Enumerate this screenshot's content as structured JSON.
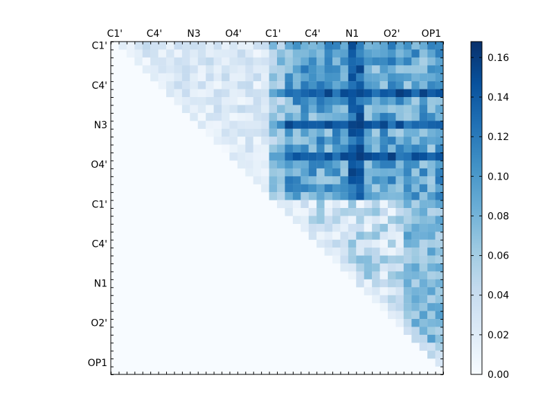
{
  "chart_data": {
    "type": "heatmap",
    "title": "",
    "xlabel": "",
    "ylabel": "",
    "x_tick_labels": [
      "C1'",
      "C4'",
      "N3",
      "O4'",
      "C1'",
      "C4'",
      "N1",
      "O2'",
      "OP1"
    ],
    "y_tick_labels": [
      "C1'",
      "C4'",
      "N3",
      "O4'",
      "C1'",
      "C4'",
      "N1",
      "O2'",
      "OP1"
    ],
    "grid_size": 42,
    "tick_step": 5,
    "colormap": "Blues",
    "colorbar": {
      "min": 0.0,
      "max": 0.168,
      "ticks": [
        "0.00",
        "0.02",
        "0.04",
        "0.06",
        "0.08",
        "0.10",
        "0.12",
        "0.14",
        "0.16"
      ],
      "tick_values": [
        0.0,
        0.02,
        0.04,
        0.06,
        0.08,
        0.1,
        0.12,
        0.14,
        0.16
      ],
      "stops": [
        "#f7fbff",
        "#deebf7",
        "#c6dbef",
        "#9ecae1",
        "#6baed6",
        "#4292c6",
        "#2171b5",
        "#08519c",
        "#08306b"
      ]
    },
    "mask": "upper-triangle",
    "blocks": {
      "boundary_index": 20,
      "intra_first_base_mean": 0.025,
      "cross_base_mean": 0.095,
      "intra_second_base_mean": 0.04
    },
    "notes_visible": []
  }
}
